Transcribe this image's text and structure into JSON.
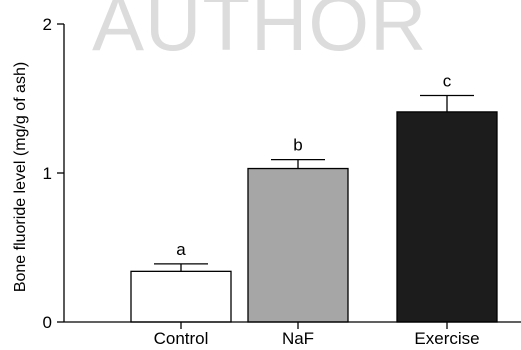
{
  "watermark": "AUTHOR",
  "chart_data": {
    "type": "bar",
    "title": "",
    "xlabel": "",
    "ylabel": "Bone fluoride level (mg/g of ash)",
    "ylim": [
      0,
      2
    ],
    "yticks": [
      0,
      1,
      2
    ],
    "ytick_labels": [
      "0",
      "1",
      "2"
    ],
    "categories": [
      "Control",
      "NaF",
      "Exercise"
    ],
    "values": [
      0.34,
      1.03,
      1.41
    ],
    "errors": [
      0.05,
      0.06,
      0.11
    ],
    "significance_labels": [
      "a",
      "b",
      "c"
    ],
    "bar_colors": [
      "#ffffff",
      "#a6a6a6",
      "#1c1c1c"
    ],
    "grid": false
  }
}
